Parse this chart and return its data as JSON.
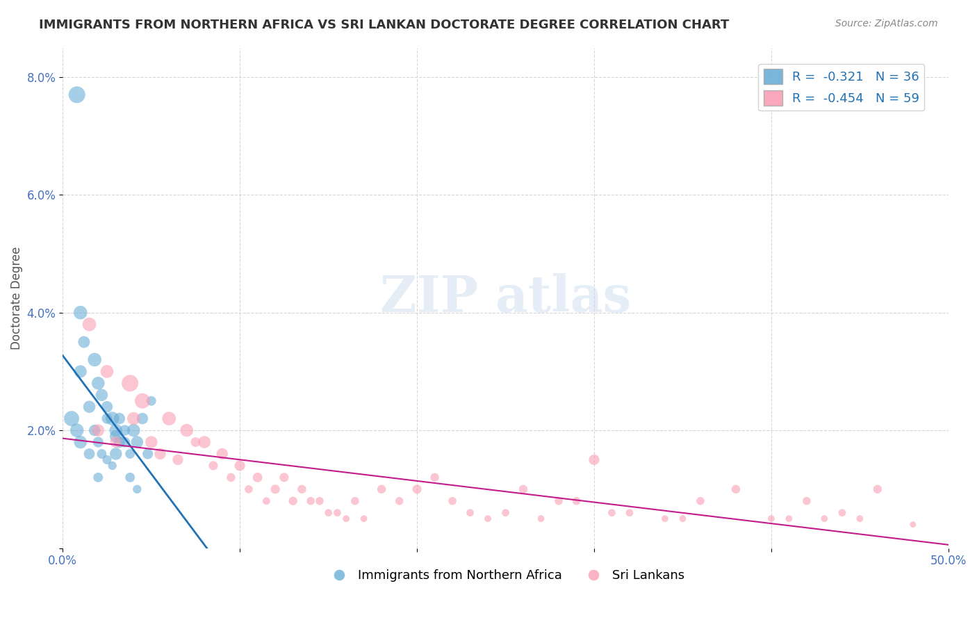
{
  "title": "IMMIGRANTS FROM NORTHERN AFRICA VS SRI LANKAN DOCTORATE DEGREE CORRELATION CHART",
  "source": "Source: ZipAtlas.com",
  "xlabel": "",
  "ylabel": "Doctorate Degree",
  "xlim": [
    0.0,
    0.5
  ],
  "ylim": [
    0.0,
    0.085
  ],
  "xticks": [
    0.0,
    0.1,
    0.2,
    0.3,
    0.4,
    0.5
  ],
  "xticklabels": [
    "0.0%",
    "",
    "",
    "",
    "",
    "50.0%"
  ],
  "yticks": [
    0.0,
    0.02,
    0.04,
    0.06,
    0.08
  ],
  "yticklabels": [
    "",
    "2.0%",
    "4.0%",
    "6.0%",
    "8.0%"
  ],
  "legend_R1": "R =  -0.321",
  "legend_N1": "N = 36",
  "legend_R2": "R =  -0.454",
  "legend_N2": "N = 59",
  "color_blue": "#6baed6",
  "color_pink": "#fa9fb5",
  "line_color_blue": "#2171b5",
  "line_color_pink": "#c51b8a",
  "watermark": "ZIPatlas",
  "blue_scatter": [
    [
      0.008,
      0.077
    ],
    [
      0.01,
      0.04
    ],
    [
      0.012,
      0.035
    ],
    [
      0.018,
      0.032
    ],
    [
      0.02,
      0.028
    ],
    [
      0.022,
      0.026
    ],
    [
      0.025,
      0.024
    ],
    [
      0.025,
      0.022
    ],
    [
      0.028,
      0.022
    ],
    [
      0.03,
      0.02
    ],
    [
      0.03,
      0.019
    ],
    [
      0.032,
      0.018
    ],
    [
      0.035,
      0.018
    ],
    [
      0.038,
      0.016
    ],
    [
      0.04,
      0.02
    ],
    [
      0.042,
      0.018
    ],
    [
      0.045,
      0.022
    ],
    [
      0.048,
      0.016
    ],
    [
      0.05,
      0.025
    ],
    [
      0.005,
      0.022
    ],
    [
      0.008,
      0.02
    ],
    [
      0.01,
      0.018
    ],
    [
      0.015,
      0.024
    ],
    [
      0.018,
      0.02
    ],
    [
      0.02,
      0.018
    ],
    [
      0.022,
      0.016
    ],
    [
      0.025,
      0.015
    ],
    [
      0.028,
      0.014
    ],
    [
      0.03,
      0.016
    ],
    [
      0.032,
      0.022
    ],
    [
      0.035,
      0.02
    ],
    [
      0.038,
      0.012
    ],
    [
      0.042,
      0.01
    ],
    [
      0.01,
      0.03
    ],
    [
      0.015,
      0.016
    ],
    [
      0.02,
      0.012
    ]
  ],
  "pink_scatter": [
    [
      0.015,
      0.038
    ],
    [
      0.025,
      0.03
    ],
    [
      0.038,
      0.028
    ],
    [
      0.045,
      0.025
    ],
    [
      0.06,
      0.022
    ],
    [
      0.07,
      0.02
    ],
    [
      0.08,
      0.018
    ],
    [
      0.09,
      0.016
    ],
    [
      0.1,
      0.014
    ],
    [
      0.11,
      0.012
    ],
    [
      0.12,
      0.01
    ],
    [
      0.13,
      0.008
    ],
    [
      0.14,
      0.008
    ],
    [
      0.15,
      0.006
    ],
    [
      0.16,
      0.005
    ],
    [
      0.17,
      0.005
    ],
    [
      0.18,
      0.01
    ],
    [
      0.19,
      0.008
    ],
    [
      0.2,
      0.01
    ],
    [
      0.21,
      0.012
    ],
    [
      0.22,
      0.008
    ],
    [
      0.23,
      0.006
    ],
    [
      0.24,
      0.005
    ],
    [
      0.26,
      0.01
    ],
    [
      0.28,
      0.008
    ],
    [
      0.3,
      0.015
    ],
    [
      0.32,
      0.006
    ],
    [
      0.34,
      0.005
    ],
    [
      0.36,
      0.008
    ],
    [
      0.38,
      0.01
    ],
    [
      0.4,
      0.005
    ],
    [
      0.42,
      0.008
    ],
    [
      0.44,
      0.006
    ],
    [
      0.46,
      0.01
    ],
    [
      0.02,
      0.02
    ],
    [
      0.03,
      0.018
    ],
    [
      0.04,
      0.022
    ],
    [
      0.05,
      0.018
    ],
    [
      0.055,
      0.016
    ],
    [
      0.065,
      0.015
    ],
    [
      0.075,
      0.018
    ],
    [
      0.085,
      0.014
    ],
    [
      0.095,
      0.012
    ],
    [
      0.105,
      0.01
    ],
    [
      0.115,
      0.008
    ],
    [
      0.125,
      0.012
    ],
    [
      0.135,
      0.01
    ],
    [
      0.145,
      0.008
    ],
    [
      0.155,
      0.006
    ],
    [
      0.165,
      0.008
    ],
    [
      0.25,
      0.006
    ],
    [
      0.27,
      0.005
    ],
    [
      0.29,
      0.008
    ],
    [
      0.31,
      0.006
    ],
    [
      0.35,
      0.005
    ],
    [
      0.41,
      0.005
    ],
    [
      0.43,
      0.005
    ],
    [
      0.45,
      0.005
    ],
    [
      0.48,
      0.004
    ]
  ],
  "blue_sizes": [
    300,
    200,
    150,
    200,
    180,
    160,
    140,
    120,
    200,
    180,
    160,
    140,
    120,
    100,
    180,
    160,
    140,
    120,
    100,
    250,
    200,
    180,
    160,
    140,
    120,
    100,
    90,
    80,
    160,
    140,
    120,
    100,
    80,
    170,
    130,
    100
  ],
  "pink_sizes": [
    200,
    180,
    300,
    250,
    200,
    180,
    160,
    140,
    120,
    100,
    90,
    80,
    70,
    60,
    50,
    50,
    80,
    70,
    90,
    80,
    70,
    60,
    50,
    80,
    70,
    120,
    60,
    50,
    70,
    80,
    50,
    70,
    60,
    80,
    160,
    140,
    180,
    160,
    140,
    120,
    100,
    90,
    80,
    70,
    60,
    90,
    80,
    70,
    60,
    70,
    60,
    50,
    70,
    60,
    50,
    50,
    50,
    50,
    40
  ]
}
